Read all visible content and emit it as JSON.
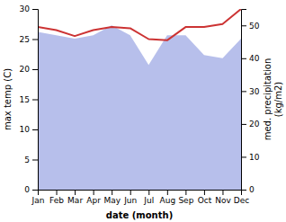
{
  "chart_data": {
    "type": "line",
    "xlabel": "date (month)",
    "ylabel": "max temp (C)",
    "y2label": "med. precipitation\n(kg/m2)",
    "categories": [
      "Jan",
      "Feb",
      "Mar",
      "Apr",
      "May",
      "Jun",
      "Jul",
      "Aug",
      "Sep",
      "Oct",
      "Nov",
      "Dec"
    ],
    "series": [
      {
        "type": "area",
        "color": "#aab4e8",
        "axis": "y2",
        "values": [
          48,
          47,
          46,
          47,
          50,
          47,
          38,
          47,
          47,
          41,
          40,
          46
        ]
      },
      {
        "type": "line",
        "color": "#cc3333",
        "values": [
          27.0,
          26.5,
          25.5,
          26.5,
          27.0,
          26.8,
          25.0,
          24.8,
          27.0,
          27.0,
          27.5,
          30.0
        ]
      }
    ],
    "ylim": [
      0,
      30
    ],
    "yticks": [
      0,
      5,
      10,
      15,
      20,
      25,
      30
    ],
    "y2lim": [
      0,
      55
    ],
    "y2ticks": [
      0,
      10,
      20,
      30,
      40,
      50
    ]
  }
}
